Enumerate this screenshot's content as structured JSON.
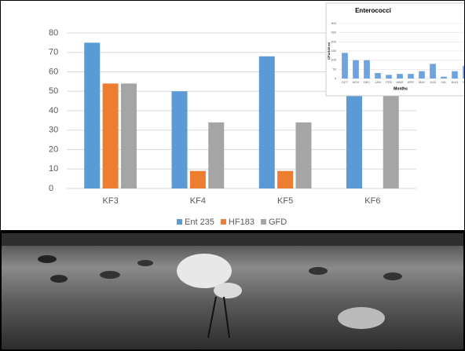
{
  "chart_data": [
    {
      "type": "bar",
      "categories": [
        "KF3",
        "KF4",
        "KF5",
        "KF6"
      ],
      "series": [
        {
          "name": "Ent 235",
          "color": "#5b9bd5",
          "values": [
            75,
            50,
            68,
            54
          ]
        },
        {
          "name": "HF183",
          "color": "#ed7d31",
          "values": [
            54,
            9,
            9,
            0
          ]
        },
        {
          "name": "GFD",
          "color": "#a5a5a5",
          "values": [
            54,
            34,
            34,
            54
          ]
        }
      ],
      "ylim": [
        0,
        80
      ],
      "yticks": [
        0,
        10,
        20,
        30,
        40,
        50,
        60,
        70,
        80
      ],
      "grid": true,
      "legend": "bottom"
    },
    {
      "type": "bar",
      "title": "Enterococci",
      "ylabel": "CFU/100 ml",
      "xlabel": "Months",
      "categories": [
        "OCT",
        "NOV",
        "DEC",
        "JAN",
        "FEB",
        "MAR",
        "APR",
        "MAY",
        "JUN",
        "JUL",
        "AUG",
        "SEP"
      ],
      "values": [
        140,
        100,
        100,
        30,
        20,
        25,
        25,
        40,
        80,
        10,
        40,
        70
      ],
      "color": "#6fa3e0",
      "ylim": [
        0,
        300
      ],
      "yticks": [
        0,
        50,
        100,
        150,
        200,
        250,
        300
      ],
      "grid": true
    }
  ]
}
